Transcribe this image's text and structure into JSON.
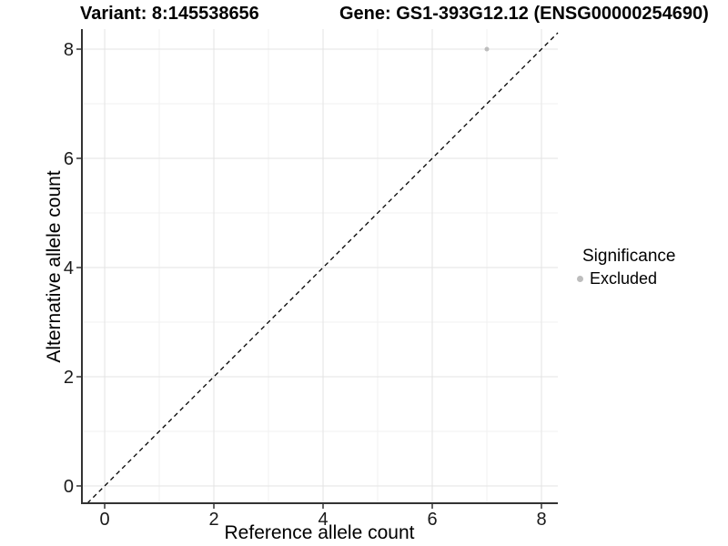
{
  "titles": {
    "variant": "Variant: 8:145538656",
    "gene": "Gene: GS1-393G12.12 (ENSG00000254690)"
  },
  "axes": {
    "x_label": "Reference allele count",
    "y_label": "Alternative allele count"
  },
  "legend": {
    "title": "Significance",
    "items": [
      {
        "label": "Excluded",
        "color": "#bdbdbd"
      }
    ]
  },
  "chart_data": {
    "type": "scatter",
    "title": "Variant: 8:145538656 | Gene: GS1-393G12.12 (ENSG00000254690)",
    "xlabel": "Reference allele count",
    "ylabel": "Alternative allele count",
    "xlim": [
      -0.417,
      8.3
    ],
    "ylim": [
      -0.317,
      8.367
    ],
    "x_ticks": [
      0,
      2,
      4,
      6,
      8
    ],
    "y_ticks": [
      0,
      2,
      4,
      6,
      8
    ],
    "x_minor_ticks": [
      1,
      3,
      5,
      7
    ],
    "y_minor_ticks": [
      1,
      3,
      5,
      7
    ],
    "grid": true,
    "legend_position": "right",
    "series": [
      {
        "name": "Excluded",
        "color": "#bdbdbd",
        "point_radius": 2.5,
        "points": [
          {
            "x": 7,
            "y": 8
          }
        ]
      }
    ],
    "reference_line": {
      "type": "identity",
      "slope": 1,
      "intercept": 0,
      "style": "dashed",
      "color": "#000000"
    },
    "colors": {
      "grid_major": "#e3e3e3",
      "grid_minor": "#f1f1f1",
      "axis_line": "#333333",
      "tick_label": "#1a1a1a"
    }
  }
}
